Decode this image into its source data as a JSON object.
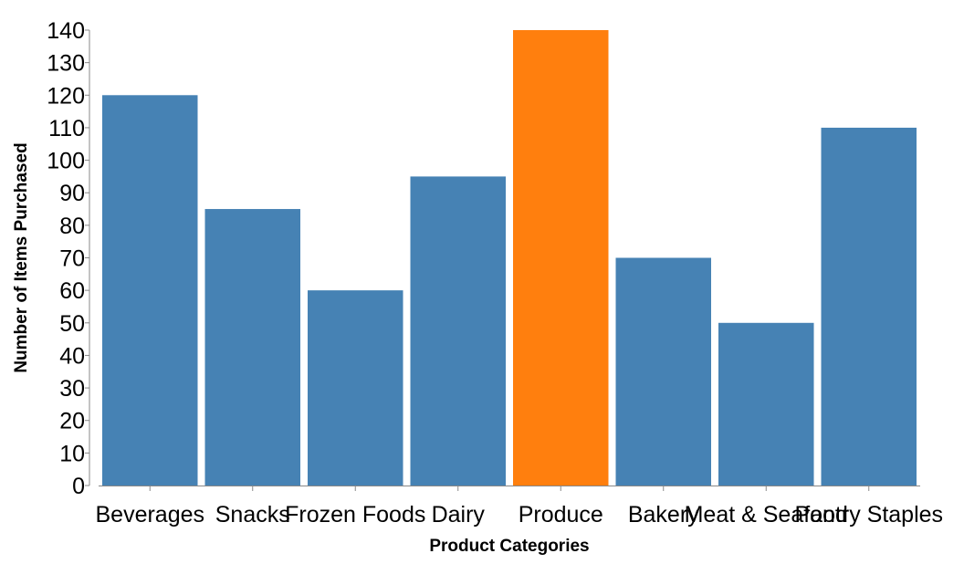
{
  "chart_data": {
    "type": "bar",
    "categories": [
      "Beverages",
      "Snacks",
      "Frozen Foods",
      "Dairy",
      "Produce",
      "Bakery",
      "Meat & Seafood",
      "Pantry Staples"
    ],
    "values": [
      120,
      85,
      60,
      95,
      140,
      70,
      50,
      110
    ],
    "xlabel": "Product Categories",
    "ylabel": "Number of Items Purchased",
    "ylim": [
      0,
      140
    ],
    "yticks": [
      0,
      10,
      20,
      30,
      40,
      50,
      60,
      70,
      80,
      90,
      100,
      110,
      120,
      130,
      140
    ],
    "grid": false,
    "colors": {
      "default": "#4682b4",
      "highlight": "#ff7f0e"
    },
    "highlight_category": "Produce"
  }
}
